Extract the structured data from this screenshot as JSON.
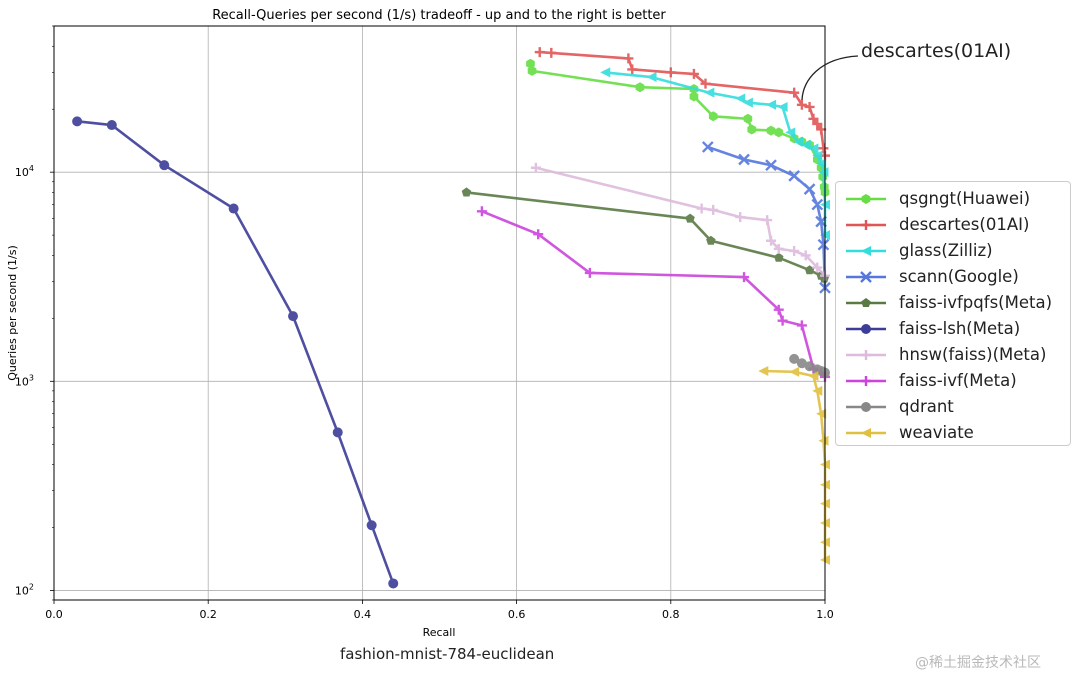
{
  "caption": "fashion-mnist-784-euclidean",
  "annotation": "descartes(01AI)",
  "watermark": "@稀土掘金技术社区",
  "chart_data": {
    "type": "line",
    "title": "Recall-Queries per second (1/s) tradeoff - up and to the right is better",
    "xlabel": "Recall",
    "ylabel": "Queries per second (1/s)",
    "xlim": [
      0.0,
      1.0
    ],
    "ylim": [
      90,
      50000
    ],
    "y_scale": "log",
    "x_ticks": [
      "0.0",
      "0.2",
      "0.4",
      "0.6",
      "0.8",
      "1.0"
    ],
    "y_ticks": [
      {
        "base": "10",
        "exp": "2",
        "value": 100
      },
      {
        "base": "10",
        "exp": "3",
        "value": 1000
      },
      {
        "base": "10",
        "exp": "4",
        "value": 10000
      }
    ],
    "grid": true,
    "legend_position": "right",
    "series": [
      {
        "name": "qsgngt(Huawei)",
        "color": "#66dd44",
        "marker": "hexagon",
        "x": [
          0.618,
          0.62,
          0.76,
          0.83,
          0.83,
          0.855,
          0.9,
          0.905,
          0.93,
          0.94,
          0.96,
          0.97,
          0.98,
          0.99,
          0.995,
          0.997,
          0.999,
          1.0
        ],
        "y": [
          33000,
          30500,
          25500,
          25000,
          23000,
          18500,
          18000,
          16000,
          15800,
          15500,
          14500,
          14000,
          13500,
          11500,
          10500,
          9500,
          8500,
          8000
        ]
      },
      {
        "name": "descartes(01AI)",
        "color": "#e05555",
        "marker": "plus",
        "x": [
          0.63,
          0.645,
          0.745,
          0.75,
          0.8,
          0.83,
          0.845,
          0.96,
          0.97,
          0.98,
          0.985,
          0.99,
          0.995,
          0.998,
          1.0
        ],
        "y": [
          37500,
          37200,
          35000,
          31000,
          30000,
          29500,
          26500,
          24000,
          21000,
          20500,
          18000,
          17000,
          16000,
          13000,
          12000
        ]
      },
      {
        "name": "glass(Zilliz)",
        "color": "#33dddd",
        "marker": "triangle-left",
        "x": [
          0.715,
          0.775,
          0.85,
          0.89,
          0.9,
          0.93,
          0.945,
          0.955,
          0.965,
          0.975,
          0.985,
          0.99,
          0.995,
          0.998,
          1.0,
          1.0
        ],
        "y": [
          30000,
          28500,
          24000,
          22500,
          21500,
          21000,
          20500,
          15500,
          14000,
          13500,
          13000,
          12000,
          11000,
          10000,
          7000,
          5000
        ]
      },
      {
        "name": "scann(Google)",
        "color": "#5577dd",
        "marker": "x",
        "x": [
          0.848,
          0.895,
          0.93,
          0.96,
          0.98,
          0.99,
          0.995,
          0.998,
          1.0
        ],
        "y": [
          13200,
          11500,
          10800,
          9600,
          8300,
          7000,
          5800,
          4500,
          2800
        ]
      },
      {
        "name": "faiss-ivfpqfs(Meta)",
        "color": "#5a7a44",
        "marker": "pentagon",
        "x": [
          0.535,
          0.825,
          0.852,
          0.94,
          0.98,
          0.995,
          0.999
        ],
        "y": [
          8000,
          6000,
          4700,
          3900,
          3400,
          3200,
          3100
        ]
      },
      {
        "name": "faiss-lsh(Meta)",
        "color": "#3d3d99",
        "marker": "circle",
        "x": [
          0.03,
          0.075,
          0.143,
          0.233,
          0.31,
          0.368,
          0.412,
          0.44
        ],
        "y": [
          17500,
          16800,
          10800,
          6700,
          2050,
          570,
          205,
          108
        ]
      },
      {
        "name": "hnsw(faiss)(Meta)",
        "color": "#ddbbdd",
        "marker": "plus",
        "x": [
          0.625,
          0.84,
          0.855,
          0.89,
          0.925,
          0.93,
          0.94,
          0.96,
          0.975,
          0.99,
          1.0
        ],
        "y": [
          10500,
          6700,
          6600,
          6100,
          5900,
          4700,
          4300,
          4200,
          4000,
          3500,
          3200
        ]
      },
      {
        "name": "faiss-ivf(Meta)",
        "color": "#cc44dd",
        "marker": "plus",
        "x": [
          0.555,
          0.628,
          0.695,
          0.895,
          0.94,
          0.945,
          0.97,
          0.985,
          0.995,
          1.0
        ],
        "y": [
          6500,
          5050,
          3300,
          3150,
          2200,
          1950,
          1850,
          1150,
          1100,
          1050
        ]
      },
      {
        "name": "qdrant",
        "color": "#888888",
        "marker": "circle",
        "x": [
          0.96,
          0.97,
          0.98,
          0.99,
          0.995,
          1.0
        ],
        "y": [
          1280,
          1220,
          1180,
          1140,
          1120,
          1100
        ]
      },
      {
        "name": "weaviate",
        "color": "#e0c040",
        "marker": "triangle-left",
        "x": [
          0.92,
          0.96,
          0.985,
          0.99,
          0.995,
          0.998,
          1.0,
          1.0,
          1.0,
          1.0,
          1.0,
          1.0
        ],
        "y": [
          1120,
          1110,
          1060,
          900,
          700,
          520,
          400,
          320,
          260,
          210,
          170,
          140
        ]
      }
    ]
  }
}
